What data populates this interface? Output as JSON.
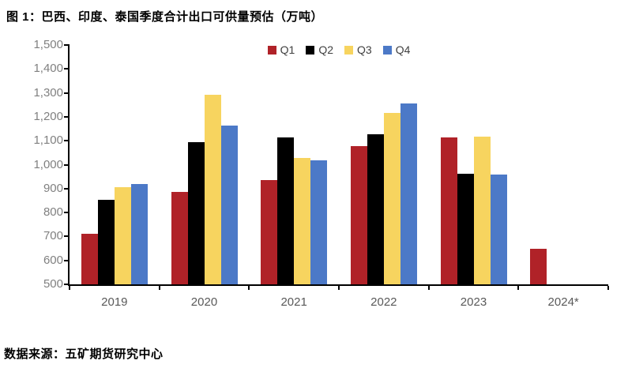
{
  "title": "图 1：巴西、印度、泰国季度合计出口可供量预估（万吨）",
  "source": "数据来源：五矿期货研究中心",
  "legend": {
    "items": [
      "Q1",
      "Q2",
      "Q3",
      "Q4"
    ]
  },
  "colors": {
    "q1_red": "#B02228",
    "q2_black": "#000000",
    "q3_yellow": "#F7D45F",
    "q4_blue": "#4C79C7",
    "axis": "#000000",
    "y_tick_label": "#808080",
    "x_tick_label": "#595959",
    "legend_text": "#404040"
  },
  "chart_data": {
    "type": "bar",
    "title": "图 1：巴西、印度、泰国季度合计出口可供量预估（万吨）",
    "xlabel": "",
    "ylabel": "",
    "categories": [
      "2019",
      "2020",
      "2021",
      "2022",
      "2023",
      "2024*"
    ],
    "series": [
      {
        "name": "Q1",
        "color": "#B02228",
        "values": [
          710,
          885,
          935,
          1078,
          1113,
          648
        ]
      },
      {
        "name": "Q2",
        "color": "#000000",
        "values": [
          852,
          1095,
          1113,
          1128,
          963,
          null
        ]
      },
      {
        "name": "Q3",
        "color": "#F7D45F",
        "values": [
          905,
          1292,
          1027,
          1215,
          1117,
          null
        ]
      },
      {
        "name": "Q4",
        "color": "#4C79C7",
        "values": [
          918,
          1163,
          1018,
          1255,
          958,
          null
        ]
      }
    ],
    "ylim": [
      500,
      1500
    ],
    "y_tick_step": 100,
    "y_tick_labels": [
      "500",
      "600",
      "700",
      "800",
      "900",
      "1,000",
      "1,100",
      "1,200",
      "1,300",
      "1,400",
      "1,500"
    ],
    "grid": false,
    "legend_position": "top-center"
  }
}
